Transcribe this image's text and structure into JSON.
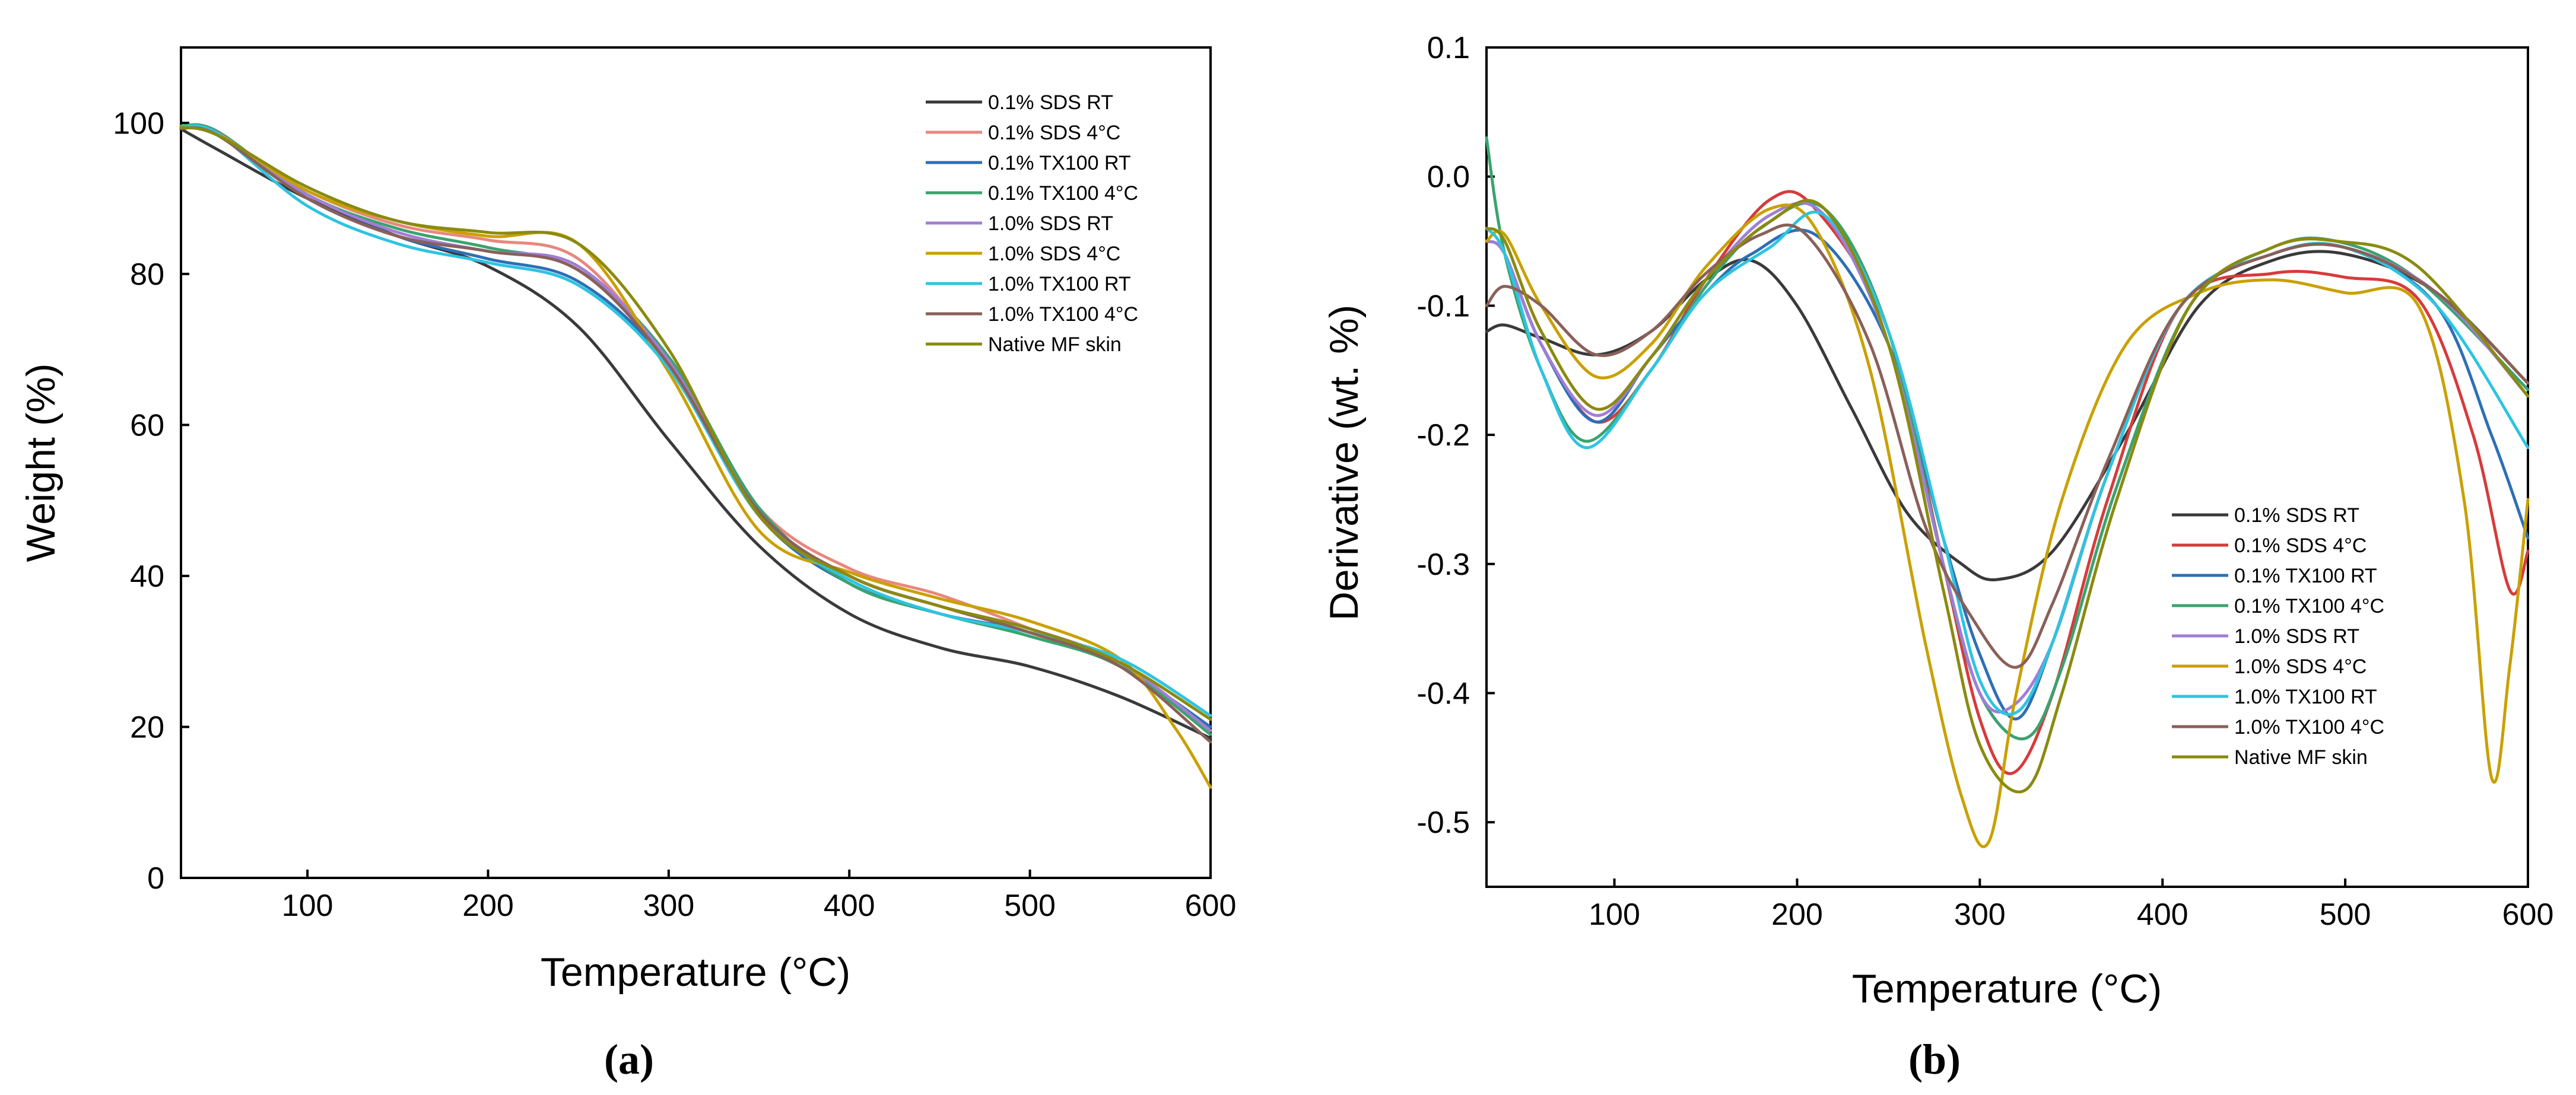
{
  "chart_data": [
    {
      "type": "line",
      "panel_label": "(a)",
      "xlabel": "Temperature (°C)",
      "ylabel": "Weight (%)",
      "xlim": [
        30,
        600
      ],
      "ylim": [
        0,
        110
      ],
      "xticks": [
        100,
        200,
        300,
        400,
        500,
        600
      ],
      "yticks": [
        0,
        20,
        40,
        60,
        80,
        100
      ],
      "legend_position": "top-right",
      "grid": false,
      "series": [
        {
          "name": "0.1% SDS RT",
          "color": "#3a3a3a",
          "x": [
            30,
            50,
            100,
            150,
            200,
            250,
            300,
            350,
            400,
            450,
            500,
            550,
            600
          ],
          "y": [
            99.2,
            96.5,
            90,
            85,
            81,
            73,
            58,
            44,
            35,
            30.5,
            28,
            24,
            18.5
          ]
        },
        {
          "name": "0.1% SDS 4°C",
          "color": "#e8877e",
          "x": [
            30,
            50,
            100,
            150,
            200,
            250,
            300,
            350,
            400,
            450,
            500,
            550,
            600
          ],
          "y": [
            99.5,
            98.5,
            91,
            86.5,
            84.5,
            82,
            68,
            49,
            41,
            37.5,
            33,
            28,
            20
          ]
        },
        {
          "name": "0.1% TX100 RT",
          "color": "#2e6fb5",
          "x": [
            30,
            50,
            100,
            150,
            200,
            250,
            300,
            350,
            400,
            450,
            500,
            550,
            600
          ],
          "y": [
            99.5,
            98.8,
            90,
            85,
            82,
            79,
            68,
            48,
            39,
            35,
            32.5,
            28,
            20
          ]
        },
        {
          "name": "0.1% TX100 4°C",
          "color": "#3aa36f",
          "x": [
            30,
            50,
            100,
            150,
            200,
            250,
            300,
            350,
            400,
            450,
            500,
            550,
            600
          ],
          "y": [
            99.6,
            98.9,
            90.5,
            86,
            83.5,
            80.5,
            69,
            49,
            39,
            35,
            32,
            28,
            19
          ]
        },
        {
          "name": "1.0% SDS RT",
          "color": "#a07ed6",
          "x": [
            30,
            50,
            100,
            150,
            200,
            250,
            300,
            350,
            400,
            450,
            500,
            550,
            600
          ],
          "y": [
            99.4,
            98.7,
            90.5,
            85.5,
            83,
            81,
            68.5,
            48.5,
            40,
            36,
            33,
            28.5,
            19.5
          ]
        },
        {
          "name": "1.0% SDS 4°C",
          "color": "#c9a000",
          "x": [
            30,
            50,
            100,
            150,
            200,
            250,
            300,
            350,
            400,
            450,
            500,
            550,
            580,
            600
          ],
          "y": [
            99.5,
            98.6,
            91,
            87,
            85,
            84,
            67,
            46,
            40.5,
            37,
            34,
            29,
            20,
            12
          ]
        },
        {
          "name": "1.0% TX100 RT",
          "color": "#2ec4e0",
          "x": [
            30,
            50,
            100,
            150,
            200,
            250,
            300,
            350,
            400,
            450,
            500,
            550,
            600
          ],
          "y": [
            99.5,
            98.6,
            89,
            84,
            81.5,
            78.5,
            67.5,
            48,
            39.5,
            35,
            32.5,
            29,
            21.5
          ]
        },
        {
          "name": "1.0% TX100 4°C",
          "color": "#8a6058",
          "x": [
            30,
            50,
            100,
            150,
            200,
            250,
            300,
            350,
            400,
            450,
            500,
            550,
            600
          ],
          "y": [
            99.3,
            98.4,
            90,
            85,
            83,
            80.5,
            68,
            48.5,
            40,
            36,
            32.5,
            28,
            18
          ]
        },
        {
          "name": "Native MF skin",
          "color": "#8a8a10",
          "x": [
            30,
            50,
            100,
            150,
            200,
            250,
            300,
            350,
            400,
            450,
            500,
            550,
            600
          ],
          "y": [
            99.4,
            98.4,
            91.5,
            87,
            85.5,
            84,
            70,
            48,
            40,
            36,
            33,
            28.5,
            21
          ]
        }
      ]
    },
    {
      "type": "line",
      "panel_label": "(b)",
      "xlabel": "Temperature (°C)",
      "ylabel": "Derivative (wt. %)",
      "xlim": [
        30,
        600
      ],
      "ylim": [
        -0.55,
        0.1
      ],
      "xticks": [
        100,
        200,
        300,
        400,
        500,
        600
      ],
      "yticks": [
        0.1,
        0.0,
        -0.1,
        -0.2,
        -0.3,
        -0.4,
        -0.5
      ],
      "ytick_labels": [
        "0.1",
        "0.0",
        "-0.1",
        "-0.2",
        "-0.3",
        "-0.4",
        "-0.5"
      ],
      "legend_position": "center-right",
      "grid": false,
      "series": [
        {
          "name": "0.1% SDS RT",
          "color": "#3a3a3a",
          "x": [
            30,
            40,
            60,
            90,
            120,
            150,
            175,
            200,
            230,
            260,
            290,
            310,
            340,
            380,
            420,
            460,
            500,
            550,
            600
          ],
          "y": [
            -0.12,
            -0.115,
            -0.125,
            -0.138,
            -0.12,
            -0.08,
            -0.065,
            -0.1,
            -0.18,
            -0.26,
            -0.3,
            -0.312,
            -0.29,
            -0.2,
            -0.1,
            -0.065,
            -0.06,
            -0.09,
            -0.16
          ]
        },
        {
          "name": "0.1% SDS 4°C",
          "color": "#d63b3b",
          "x": [
            30,
            40,
            60,
            90,
            120,
            150,
            185,
            210,
            250,
            280,
            300,
            318,
            340,
            370,
            410,
            460,
            500,
            540,
            570,
            590,
            600
          ],
          "y": [
            -0.05,
            -0.06,
            -0.13,
            -0.19,
            -0.15,
            -0.08,
            -0.018,
            -0.025,
            -0.12,
            -0.3,
            -0.42,
            -0.462,
            -0.4,
            -0.25,
            -0.1,
            -0.075,
            -0.078,
            -0.095,
            -0.2,
            -0.32,
            -0.29
          ]
        },
        {
          "name": "0.1% TX100 RT",
          "color": "#2e6fb5",
          "x": [
            30,
            40,
            60,
            90,
            120,
            150,
            175,
            210,
            250,
            280,
            300,
            320,
            340,
            370,
            410,
            460,
            500,
            550,
            580,
            600
          ],
          "y": [
            -0.05,
            -0.06,
            -0.13,
            -0.19,
            -0.14,
            -0.09,
            -0.06,
            -0.045,
            -0.13,
            -0.28,
            -0.37,
            -0.42,
            -0.36,
            -0.23,
            -0.1,
            -0.06,
            -0.055,
            -0.1,
            -0.2,
            -0.28
          ]
        },
        {
          "name": "0.1% TX100 4°C",
          "color": "#3aa36f",
          "x": [
            30,
            40,
            60,
            85,
            120,
            150,
            180,
            215,
            250,
            280,
            300,
            325,
            345,
            375,
            415,
            460,
            495,
            540,
            600
          ],
          "y": [
            0.03,
            -0.06,
            -0.15,
            -0.205,
            -0.15,
            -0.085,
            -0.04,
            -0.025,
            -0.12,
            -0.3,
            -0.4,
            -0.435,
            -0.38,
            -0.24,
            -0.1,
            -0.055,
            -0.05,
            -0.08,
            -0.165
          ]
        },
        {
          "name": "1.0% SDS RT",
          "color": "#a07ed6",
          "x": [
            30,
            40,
            60,
            90,
            120,
            150,
            185,
            215,
            250,
            280,
            300,
            318,
            340,
            370,
            410,
            460,
            500,
            550,
            600
          ],
          "y": [
            -0.05,
            -0.06,
            -0.13,
            -0.185,
            -0.14,
            -0.08,
            -0.03,
            -0.03,
            -0.13,
            -0.3,
            -0.4,
            -0.41,
            -0.36,
            -0.23,
            -0.1,
            -0.06,
            -0.055,
            -0.09,
            -0.17
          ]
        },
        {
          "name": "1.0% SDS 4°C",
          "color": "#c9a000",
          "x": [
            30,
            40,
            60,
            90,
            120,
            150,
            185,
            210,
            240,
            270,
            290,
            305,
            320,
            345,
            380,
            420,
            460,
            500,
            540,
            565,
            580,
            590,
            600
          ],
          "y": [
            -0.05,
            -0.045,
            -0.1,
            -0.155,
            -0.13,
            -0.07,
            -0.025,
            -0.04,
            -0.15,
            -0.36,
            -0.48,
            -0.515,
            -0.4,
            -0.25,
            -0.13,
            -0.09,
            -0.08,
            -0.09,
            -0.1,
            -0.25,
            -0.465,
            -0.38,
            -0.25
          ]
        },
        {
          "name": "1.0% TX100 RT",
          "color": "#2ec4e0",
          "x": [
            30,
            40,
            60,
            85,
            120,
            150,
            185,
            215,
            250,
            280,
            300,
            320,
            340,
            370,
            410,
            460,
            500,
            550,
            600
          ],
          "y": [
            -0.04,
            -0.06,
            -0.15,
            -0.21,
            -0.15,
            -0.09,
            -0.055,
            -0.03,
            -0.12,
            -0.28,
            -0.39,
            -0.415,
            -0.36,
            -0.23,
            -0.1,
            -0.06,
            -0.055,
            -0.1,
            -0.21
          ]
        },
        {
          "name": "1.0% TX100 4°C",
          "color": "#8a6058",
          "x": [
            30,
            40,
            60,
            90,
            120,
            150,
            180,
            205,
            240,
            270,
            295,
            320,
            340,
            370,
            410,
            460,
            500,
            550,
            600
          ],
          "y": [
            -0.1,
            -0.085,
            -0.1,
            -0.138,
            -0.12,
            -0.075,
            -0.045,
            -0.045,
            -0.13,
            -0.27,
            -0.34,
            -0.38,
            -0.33,
            -0.22,
            -0.1,
            -0.06,
            -0.055,
            -0.09,
            -0.16
          ]
        },
        {
          "name": "Native MF skin",
          "color": "#8a8a10",
          "x": [
            30,
            40,
            60,
            90,
            120,
            150,
            185,
            215,
            250,
            280,
            300,
            325,
            345,
            375,
            415,
            460,
            495,
            540,
            600
          ],
          "y": [
            -0.04,
            -0.05,
            -0.12,
            -0.18,
            -0.14,
            -0.08,
            -0.035,
            -0.025,
            -0.13,
            -0.32,
            -0.44,
            -0.475,
            -0.4,
            -0.25,
            -0.1,
            -0.055,
            -0.05,
            -0.07,
            -0.17
          ]
        }
      ]
    }
  ]
}
